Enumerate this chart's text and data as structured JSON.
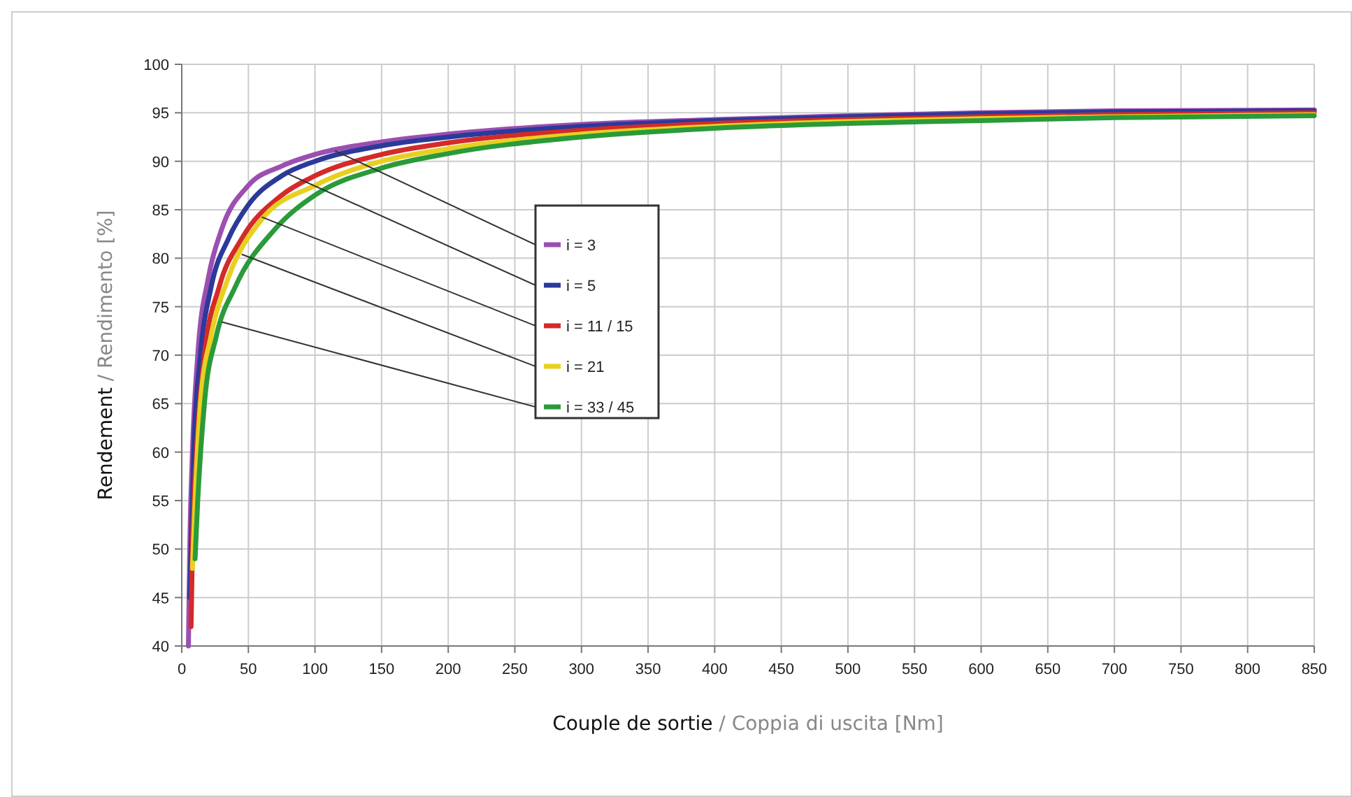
{
  "chart_data": {
    "type": "line",
    "xlabel": "Couple de sortie / Coppia di uscita [Nm]",
    "ylabel": "Rendement / Rendimento [%]",
    "xlim": [
      0,
      850
    ],
    "xticks": [
      0,
      50,
      100,
      150,
      200,
      250,
      300,
      350,
      400,
      450,
      500,
      550,
      600,
      650,
      700,
      750,
      800,
      850
    ],
    "ylim": [
      40,
      100
    ],
    "yticks": [
      40,
      45,
      50,
      55,
      60,
      65,
      70,
      75,
      80,
      85,
      90,
      95,
      100
    ],
    "grid": true,
    "legend": "center left",
    "marker": "none",
    "line_style": "solid",
    "series": [
      {
        "name": "i = 3",
        "color": "#9b4fb0",
        "x": [
          5,
          6,
          8,
          12,
          20,
          30,
          50,
          75,
          100,
          150,
          200,
          300,
          400,
          500,
          600,
          700,
          850
        ],
        "values": [
          40,
          50,
          60,
          70,
          78,
          83,
          87.5,
          89.5,
          90.7,
          92,
          92.8,
          93.8,
          94.3,
          94.7,
          95,
          95.2,
          95.3
        ]
      },
      {
        "name": "i = 5",
        "color": "#2b3a9a",
        "x": [
          6,
          7,
          9,
          14,
          22,
          35,
          50,
          75,
          100,
          150,
          200,
          300,
          400,
          500,
          600,
          700,
          850
        ],
        "values": [
          45,
          50,
          60,
          70,
          77,
          82,
          85.5,
          88.5,
          90,
          91.6,
          92.5,
          93.6,
          94.2,
          94.6,
          94.9,
          95.1,
          95.2
        ]
      },
      {
        "name": "i = 11 / 15",
        "color": "#d42a2a",
        "x": [
          7,
          8,
          11,
          17,
          28,
          45,
          75,
          100,
          150,
          200,
          300,
          400,
          500,
          600,
          700,
          850
        ],
        "values": [
          42,
          50,
          60,
          70,
          77,
          82,
          86.5,
          88.5,
          90.7,
          91.9,
          93.2,
          93.9,
          94.3,
          94.6,
          94.8,
          95
        ]
      },
      {
        "name": "i = 21",
        "color": "#e8d020",
        "x": [
          8,
          10,
          14,
          22,
          35,
          60,
          100,
          150,
          200,
          300,
          400,
          500,
          600,
          700,
          850
        ],
        "values": [
          48,
          55,
          65,
          72,
          78,
          84,
          87.5,
          90,
          91.3,
          92.8,
          93.6,
          94.1,
          94.4,
          94.6,
          94.8
        ]
      },
      {
        "name": "i = 33 / 45",
        "color": "#2a9a3a",
        "x": [
          10,
          12,
          17,
          26,
          40,
          70,
          100,
          150,
          200,
          300,
          400,
          500,
          600,
          700,
          850
        ],
        "values": [
          49,
          55,
          65,
          72,
          77,
          83,
          86.5,
          89.3,
          90.8,
          92.5,
          93.4,
          93.9,
          94.2,
          94.5,
          94.7
        ]
      }
    ]
  }
}
